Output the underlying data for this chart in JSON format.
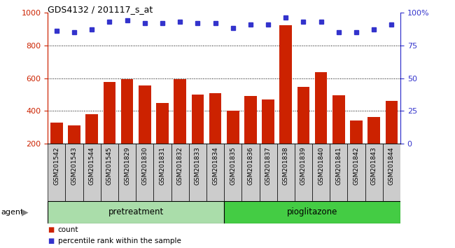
{
  "title": "GDS4132 / 201117_s_at",
  "categories": [
    "GSM201542",
    "GSM201543",
    "GSM201544",
    "GSM201545",
    "GSM201829",
    "GSM201830",
    "GSM201831",
    "GSM201832",
    "GSM201833",
    "GSM201834",
    "GSM201835",
    "GSM201836",
    "GSM201837",
    "GSM201838",
    "GSM201839",
    "GSM201840",
    "GSM201841",
    "GSM201842",
    "GSM201843",
    "GSM201844"
  ],
  "count_values": [
    330,
    312,
    380,
    575,
    595,
    555,
    450,
    595,
    500,
    510,
    400,
    490,
    470,
    920,
    545,
    635,
    495,
    340,
    362,
    460
  ],
  "percentile_values": [
    86,
    85,
    87,
    93,
    94,
    92,
    92,
    93,
    92,
    92,
    88,
    91,
    91,
    96,
    93,
    93,
    85,
    85,
    87,
    91
  ],
  "pretreatment_count": 10,
  "pioglitazone_count": 10,
  "bar_color": "#cc2200",
  "dot_color": "#3333cc",
  "grid_color": "#000000",
  "plot_bg_color": "#ffffff",
  "cell_bg_color": "#cccccc",
  "pretreatment_color": "#aaddaa",
  "pioglitazone_color": "#44cc44",
  "left_axis_color": "#cc2200",
  "right_axis_color": "#3333cc",
  "ylim_left": [
    200,
    1000
  ],
  "ylim_right": [
    0,
    100
  ],
  "yticks_left": [
    200,
    400,
    600,
    800,
    1000
  ],
  "yticks_right": [
    0,
    25,
    50,
    75,
    100
  ],
  "legend_count_label": "count",
  "legend_percentile_label": "percentile rank within the sample"
}
